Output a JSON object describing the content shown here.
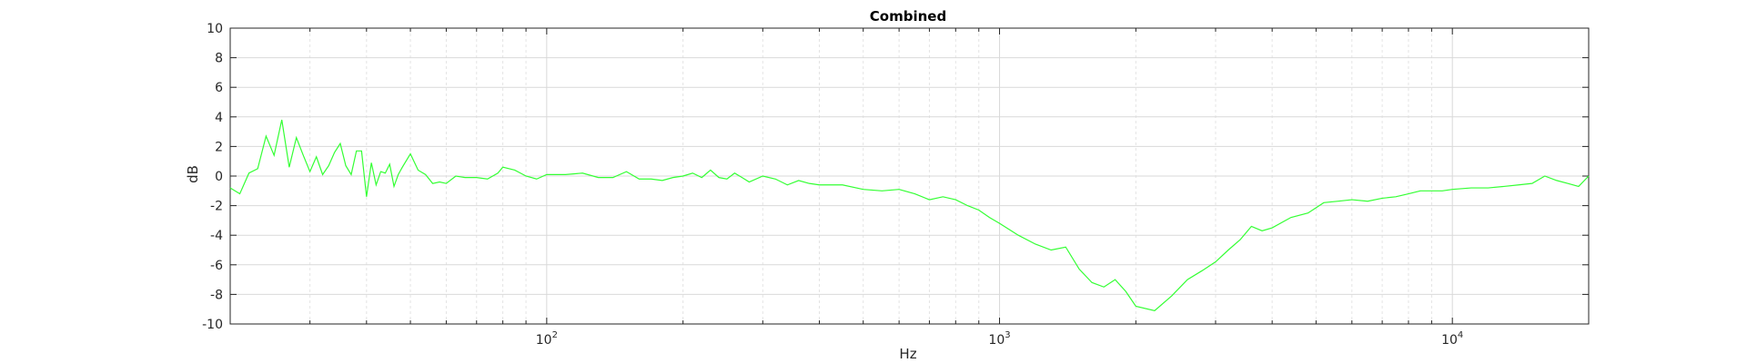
{
  "chart_data": {
    "type": "line",
    "title": "Combined",
    "xlabel": "Hz",
    "ylabel": "dB",
    "xscale": "log",
    "xlim": [
      20,
      20000
    ],
    "ylim": [
      -10,
      10
    ],
    "y_ticks": [
      -10,
      -8,
      -6,
      -4,
      -2,
      0,
      2,
      4,
      6,
      8,
      10
    ],
    "x_ticks": [
      {
        "value": 100,
        "base": "10",
        "exp": "2"
      },
      {
        "value": 1000,
        "base": "10",
        "exp": "3"
      },
      {
        "value": 10000,
        "base": "10",
        "exp": "4"
      }
    ],
    "grid": true,
    "line_color": "#33ff33",
    "series": [
      {
        "x": [
          20,
          21,
          22,
          23,
          24,
          25,
          26,
          27,
          28,
          29,
          30,
          31,
          32,
          33,
          34,
          35,
          36,
          37,
          38,
          39,
          40,
          41,
          42,
          43,
          44,
          45,
          46,
          47,
          48,
          50,
          52,
          54,
          56,
          58,
          60,
          63,
          66,
          70,
          74,
          78,
          80,
          85,
          90,
          95,
          100,
          110,
          120,
          130,
          140,
          150,
          160,
          170,
          180,
          190,
          200,
          210,
          220,
          230,
          240,
          250,
          260,
          270,
          280,
          300,
          320,
          340,
          360,
          380,
          400,
          450,
          500,
          550,
          600,
          650,
          700,
          750,
          800,
          850,
          900,
          950,
          1000,
          1100,
          1200,
          1300,
          1400,
          1500,
          1600,
          1700,
          1800,
          1900,
          2000,
          2200,
          2400,
          2600,
          2800,
          3000,
          3200,
          3400,
          3600,
          3800,
          4000,
          4400,
          4800,
          5200,
          5600,
          6000,
          6500,
          7000,
          7500,
          8000,
          8500,
          9000,
          9500,
          10000,
          11000,
          12000,
          13000,
          14000,
          15000,
          16000,
          17000,
          18000,
          19000,
          20000
        ],
        "y": [
          -0.8,
          -1.2,
          0.2,
          0.5,
          2.7,
          1.4,
          3.8,
          0.6,
          2.6,
          1.4,
          0.3,
          1.3,
          0.1,
          0.7,
          1.6,
          2.2,
          0.7,
          0.1,
          1.7,
          1.7,
          -1.4,
          0.9,
          -0.6,
          0.3,
          0.2,
          0.8,
          -0.7,
          0.1,
          0.6,
          1.5,
          0.4,
          0.1,
          -0.5,
          -0.4,
          -0.5,
          0.0,
          -0.1,
          -0.1,
          -0.2,
          0.2,
          0.6,
          0.4,
          0.0,
          -0.2,
          0.1,
          0.1,
          0.2,
          -0.1,
          -0.1,
          0.3,
          -0.2,
          -0.2,
          -0.3,
          -0.1,
          0.0,
          0.2,
          -0.1,
          0.4,
          -0.1,
          -0.2,
          0.2,
          -0.1,
          -0.4,
          0.0,
          -0.2,
          -0.6,
          -0.3,
          -0.5,
          -0.6,
          -0.6,
          -0.9,
          -1.0,
          -0.9,
          -1.2,
          -1.6,
          -1.4,
          -1.6,
          -2.0,
          -2.3,
          -2.8,
          -3.2,
          -4.0,
          -4.6,
          -5.0,
          -4.8,
          -6.3,
          -7.2,
          -7.5,
          -7.0,
          -7.8,
          -8.8,
          -9.1,
          -8.1,
          -7.0,
          -6.4,
          -5.8,
          -5.0,
          -4.3,
          -3.4,
          -3.7,
          -3.5,
          -2.8,
          -2.5,
          -1.8,
          -1.7,
          -1.6,
          -1.7,
          -1.5,
          -1.4,
          -1.2,
          -1.0,
          -1.0,
          -1.0,
          -0.9,
          -0.8,
          -0.8,
          -0.7,
          -0.6,
          -0.5,
          0.0,
          -0.3,
          -0.5,
          -0.7,
          0.0
        ]
      }
    ]
  }
}
